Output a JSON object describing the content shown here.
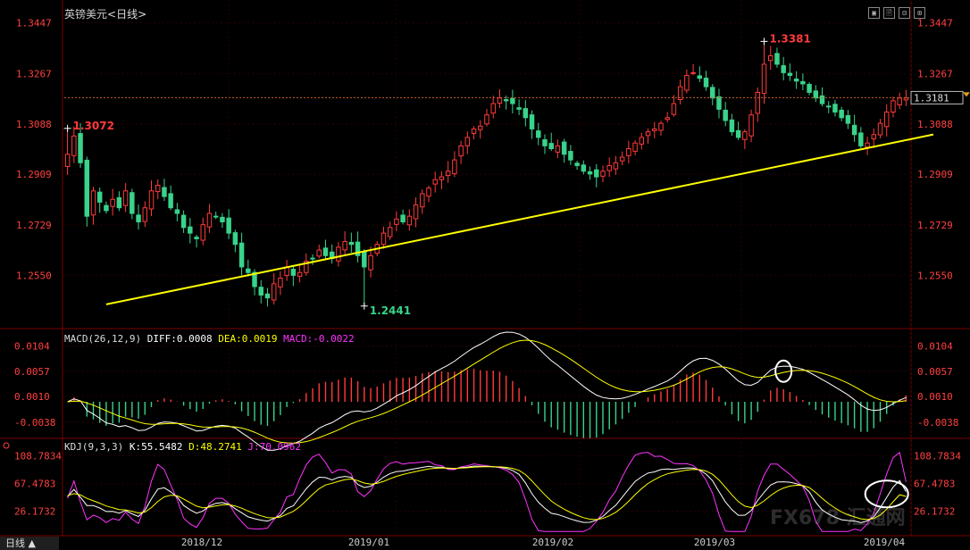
{
  "title": "英镑美元",
  "period": "<日线>",
  "window_controls": [
    "▣",
    "🗎",
    "⊟",
    "⊞"
  ],
  "bottom_tab": "日线 ▲",
  "watermark": "FX678 汇通网",
  "colors": {
    "up": "#ff3b3b",
    "down": "#39d38a",
    "trend": "#ffff00",
    "diff": "#ffffff",
    "dea": "#ffff00",
    "macd": "#ff33ff",
    "k": "#ffffff",
    "d": "#ffff00",
    "j": "#ff33ff",
    "axis": "#ff4040",
    "grid": "#2a0000"
  },
  "chart_data": [
    {
      "type": "candlestick",
      "name": "英镑美元<日线>",
      "y_ticks": [
        1.3447,
        1.3267,
        1.3088,
        1.2909,
        1.2729,
        1.255
      ],
      "ylim": [
        1.238,
        1.349
      ],
      "x_labels": [
        "2018/12",
        "2019/01",
        "2019/02",
        "2019/03",
        "2019/04"
      ],
      "last_price": 1.3181,
      "annotations": [
        {
          "text": "1.3072",
          "index": 0,
          "value": 1.3072,
          "type": "high"
        },
        {
          "text": "1.2441",
          "index": 46,
          "value": 1.2441,
          "type": "low"
        },
        {
          "text": "1.3381",
          "index": 108,
          "value": 1.3381,
          "type": "high"
        }
      ],
      "trendline": {
        "from": {
          "index": 6,
          "value": 1.2447
        },
        "to": {
          "index": 128,
          "value": 1.3021
        }
      },
      "closes": [
        1.298,
        1.3045,
        1.295,
        1.276,
        1.285,
        1.281,
        1.278,
        1.282,
        1.279,
        1.285,
        1.277,
        1.274,
        1.279,
        1.285,
        1.287,
        1.283,
        1.279,
        1.277,
        1.272,
        1.27,
        1.268,
        1.273,
        1.277,
        1.276,
        1.274,
        1.27,
        1.266,
        1.258,
        1.256,
        1.251,
        1.248,
        1.247,
        1.252,
        1.254,
        1.258,
        1.255,
        1.256,
        1.26,
        1.261,
        1.264,
        1.262,
        1.261,
        1.265,
        1.267,
        1.266,
        1.262,
        1.258,
        1.262,
        1.266,
        1.27,
        1.272,
        1.275,
        1.274,
        1.276,
        1.28,
        1.284,
        1.286,
        1.289,
        1.29,
        1.292,
        1.296,
        1.301,
        1.304,
        1.307,
        1.308,
        1.312,
        1.316,
        1.318,
        1.317,
        1.316,
        1.314,
        1.311,
        1.307,
        1.304,
        1.301,
        1.3,
        1.301,
        1.298,
        1.296,
        1.294,
        1.292,
        1.291,
        1.29,
        1.292,
        1.294,
        1.295,
        1.297,
        1.3,
        1.302,
        1.304,
        1.306,
        1.307,
        1.309,
        1.311,
        1.316,
        1.322,
        1.326,
        1.327,
        1.325,
        1.322,
        1.318,
        1.314,
        1.31,
        1.306,
        1.304,
        1.306,
        1.312,
        1.32,
        1.33,
        1.333,
        1.33,
        1.327,
        1.326,
        1.324,
        1.323,
        1.32,
        1.318,
        1.316,
        1.315,
        1.313,
        1.311,
        1.309,
        1.305,
        1.301,
        1.302,
        1.305,
        1.309,
        1.313,
        1.317,
        1.318,
        1.318
      ]
    },
    {
      "type": "macd",
      "title": "MACD(26,12,9)",
      "params": [
        26,
        12,
        9
      ],
      "DIFF": 0.0008,
      "DEA": 0.0019,
      "MACD": -0.0022,
      "y_ticks": [
        0.0104,
        0.0057,
        0.001,
        -0.0038
      ],
      "series": [
        "DIFF",
        "DEA",
        "MACD"
      ]
    },
    {
      "type": "kdj",
      "title": "KDJ(9,3,3)",
      "params": [
        9,
        3,
        3
      ],
      "K": 55.5482,
      "D": 48.2741,
      "J": 70.0962,
      "y_ticks": [
        108.7834,
        67.4783,
        26.1732
      ],
      "series": [
        "K",
        "D",
        "J"
      ]
    }
  ]
}
